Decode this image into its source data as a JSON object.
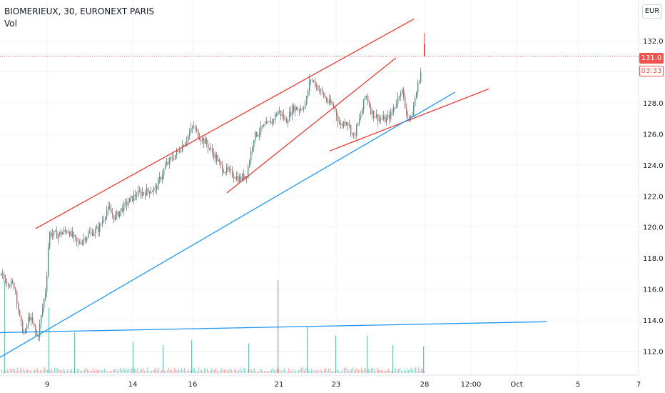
{
  "header": {
    "symbol": "BIOMERIEUX, 30, EURONEXT PARIS",
    "indicator": "Vol"
  },
  "currency": "EUR",
  "last_price": {
    "label": "131.0",
    "timer": "03:33"
  },
  "colors": {
    "up": "#26a69a",
    "down": "#ef5350",
    "trend_red": "#e53935",
    "trend_blue": "#2196f3",
    "grid": "#f0f3fa",
    "axis_text": "#131722"
  },
  "chart_data": {
    "type": "candlestick",
    "title": "",
    "ylim": [
      111,
      134
    ],
    "y_ticks": [
      "112.0",
      "114.0",
      "116.0",
      "118.0",
      "120.0",
      "122.0",
      "124.0",
      "126.0",
      "128.0",
      "130.0",
      "132.0"
    ],
    "x_ticks": [
      "9",
      "14",
      "16",
      "21",
      "23",
      "28",
      "12:00",
      "Oct",
      "5",
      "7"
    ],
    "close_path": [
      [
        0,
        116.9
      ],
      [
        10,
        116.5
      ],
      [
        20,
        116.2
      ],
      [
        28,
        113.8
      ],
      [
        34,
        113.0
      ],
      [
        40,
        114.3
      ],
      [
        48,
        113.4
      ],
      [
        52,
        112.8
      ],
      [
        58,
        114.5
      ],
      [
        64,
        116.2
      ],
      [
        68,
        119.6
      ],
      [
        80,
        119.5
      ],
      [
        95,
        119.8
      ],
      [
        108,
        118.9
      ],
      [
        122,
        119.5
      ],
      [
        138,
        119.9
      ],
      [
        150,
        121.2
      ],
      [
        160,
        120.6
      ],
      [
        172,
        121.3
      ],
      [
        190,
        122.1
      ],
      [
        205,
        122.3
      ],
      [
        218,
        122.5
      ],
      [
        232,
        124.0
      ],
      [
        248,
        124.8
      ],
      [
        260,
        125.6
      ],
      [
        270,
        126.5
      ],
      [
        278,
        125.9
      ],
      [
        290,
        125.3
      ],
      [
        300,
        124.6
      ],
      [
        310,
        123.8
      ],
      [
        322,
        123.5
      ],
      [
        335,
        123.1
      ],
      [
        345,
        123.4
      ],
      [
        355,
        125.8
      ],
      [
        365,
        126.3
      ],
      [
        378,
        126.7
      ],
      [
        390,
        127.5
      ],
      [
        400,
        126.8
      ],
      [
        410,
        127.7
      ],
      [
        420,
        127.6
      ],
      [
        428,
        128.0
      ],
      [
        434,
        129.6
      ],
      [
        440,
        129.3
      ],
      [
        448,
        128.8
      ],
      [
        458,
        128.1
      ],
      [
        468,
        127.7
      ],
      [
        476,
        126.5
      ],
      [
        485,
        126.9
      ],
      [
        495,
        125.8
      ],
      [
        505,
        127.2
      ],
      [
        512,
        128.6
      ],
      [
        520,
        127.4
      ],
      [
        530,
        127.0
      ],
      [
        540,
        126.9
      ],
      [
        548,
        127.3
      ],
      [
        556,
        128.2
      ],
      [
        562,
        129.0
      ],
      [
        568,
        127.5
      ],
      [
        575,
        126.9
      ],
      [
        582,
        128.5
      ],
      [
        588,
        129.8
      ],
      [
        592,
        130.6
      ],
      [
        594,
        131.0
      ]
    ],
    "volume_spikes": [
      [
        6,
        116.5
      ],
      [
        68,
        114.8
      ],
      [
        104,
        113.2
      ],
      [
        186,
        112.6
      ],
      [
        228,
        112.4
      ],
      [
        268,
        112.7
      ],
      [
        348,
        112.5
      ],
      [
        389,
        116.6
      ],
      [
        430,
        113.6
      ],
      [
        470,
        113.0
      ],
      [
        514,
        113.0
      ],
      [
        550,
        112.4
      ],
      [
        593,
        112.3
      ]
    ],
    "trendlines": [
      {
        "color": "red",
        "points": [
          [
            50,
            119.9
          ],
          [
            580,
            133.4
          ]
        ]
      },
      {
        "color": "red",
        "points": [
          [
            318,
            122.2
          ],
          [
            555,
            130.9
          ]
        ]
      },
      {
        "color": "red",
        "points": [
          [
            462,
            124.9
          ],
          [
            685,
            128.9
          ]
        ]
      },
      {
        "color": "blue",
        "points": [
          [
            0,
            111.6
          ],
          [
            638,
            128.7
          ]
        ]
      },
      {
        "color": "blue",
        "points": [
          [
            0,
            113.2
          ],
          [
            766,
            113.9
          ]
        ]
      }
    ],
    "last_price_value": 131.0,
    "legend": "none",
    "grid": true
  }
}
